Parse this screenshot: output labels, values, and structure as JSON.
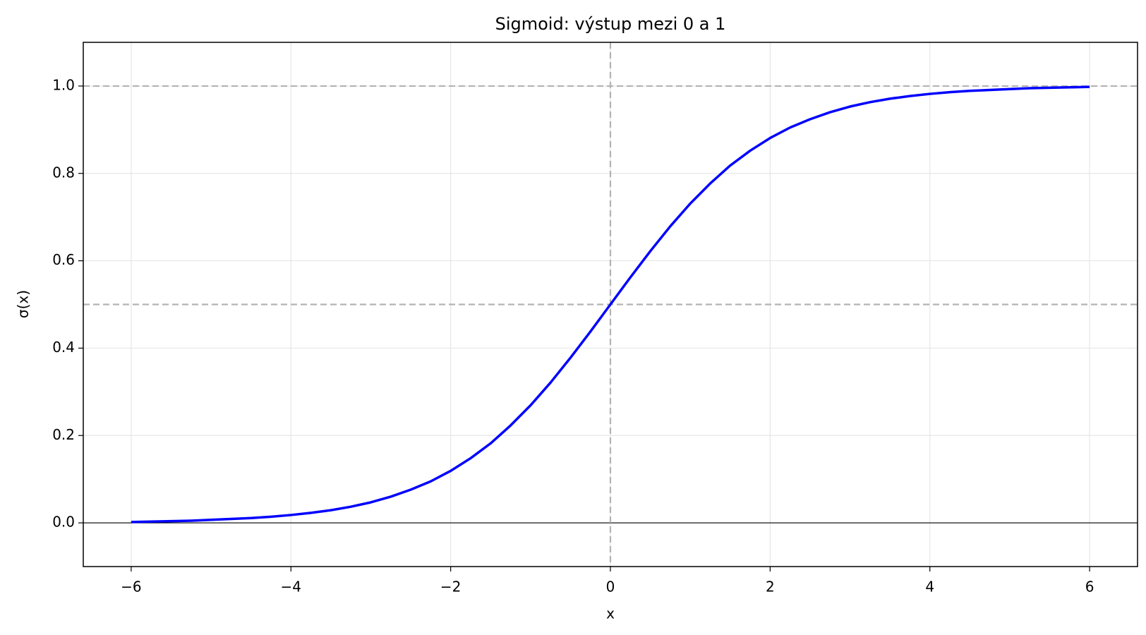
{
  "chart_data": {
    "type": "line",
    "title": "Sigmoid: výstup mezi 0 a 1",
    "xlabel": "x",
    "ylabel": "σ(x)",
    "x": [
      -6,
      -5.75,
      -5.5,
      -5.25,
      -5,
      -4.75,
      -4.5,
      -4.25,
      -4,
      -3.75,
      -3.5,
      -3.25,
      -3,
      -2.75,
      -2.5,
      -2.25,
      -2,
      -1.75,
      -1.5,
      -1.25,
      -1,
      -0.75,
      -0.5,
      -0.25,
      0,
      0.25,
      0.5,
      0.75,
      1,
      1.25,
      1.5,
      1.75,
      2,
      2.25,
      2.5,
      2.75,
      3,
      3.25,
      3.5,
      3.75,
      4,
      4.25,
      4.5,
      4.75,
      5,
      5.25,
      5.5,
      5.75,
      6
    ],
    "series": [
      {
        "name": "σ(x)",
        "color": "#0000ff",
        "values": [
          0.002,
          0.003,
          0.004,
          0.005,
          0.007,
          0.009,
          0.011,
          0.014,
          0.018,
          0.023,
          0.029,
          0.037,
          0.047,
          0.06,
          0.076,
          0.095,
          0.119,
          0.148,
          0.182,
          0.223,
          0.269,
          0.321,
          0.378,
          0.438,
          0.5,
          0.562,
          0.622,
          0.679,
          0.731,
          0.777,
          0.818,
          0.852,
          0.881,
          0.905,
          0.924,
          0.94,
          0.953,
          0.963,
          0.971,
          0.977,
          0.982,
          0.986,
          0.989,
          0.991,
          0.993,
          0.995,
          0.996,
          0.997,
          0.998
        ]
      }
    ],
    "xlim": [
      -6.6,
      6.6
    ],
    "ylim": [
      -0.1,
      1.1
    ],
    "xticks": [
      {
        "value": -6,
        "label": "−6"
      },
      {
        "value": -4,
        "label": "−4"
      },
      {
        "value": -2,
        "label": "−2"
      },
      0,
      2,
      4,
      6
    ],
    "yticks": [
      {
        "value": 0,
        "label": "0.0"
      },
      0.2,
      0.4,
      0.6,
      0.8,
      {
        "value": 1,
        "label": "1.0"
      }
    ],
    "grid": true,
    "reference_lines": [
      {
        "axis": "y",
        "value": 0,
        "color": "#000000",
        "dashed": false
      },
      {
        "axis": "y",
        "value": 0.5,
        "color": "#b3b3b3",
        "dashed": true
      },
      {
        "axis": "y",
        "value": 1,
        "color": "#b3b3b3",
        "dashed": true
      },
      {
        "axis": "x",
        "value": 0,
        "color": "#b3b3b3",
        "dashed": true
      }
    ]
  }
}
